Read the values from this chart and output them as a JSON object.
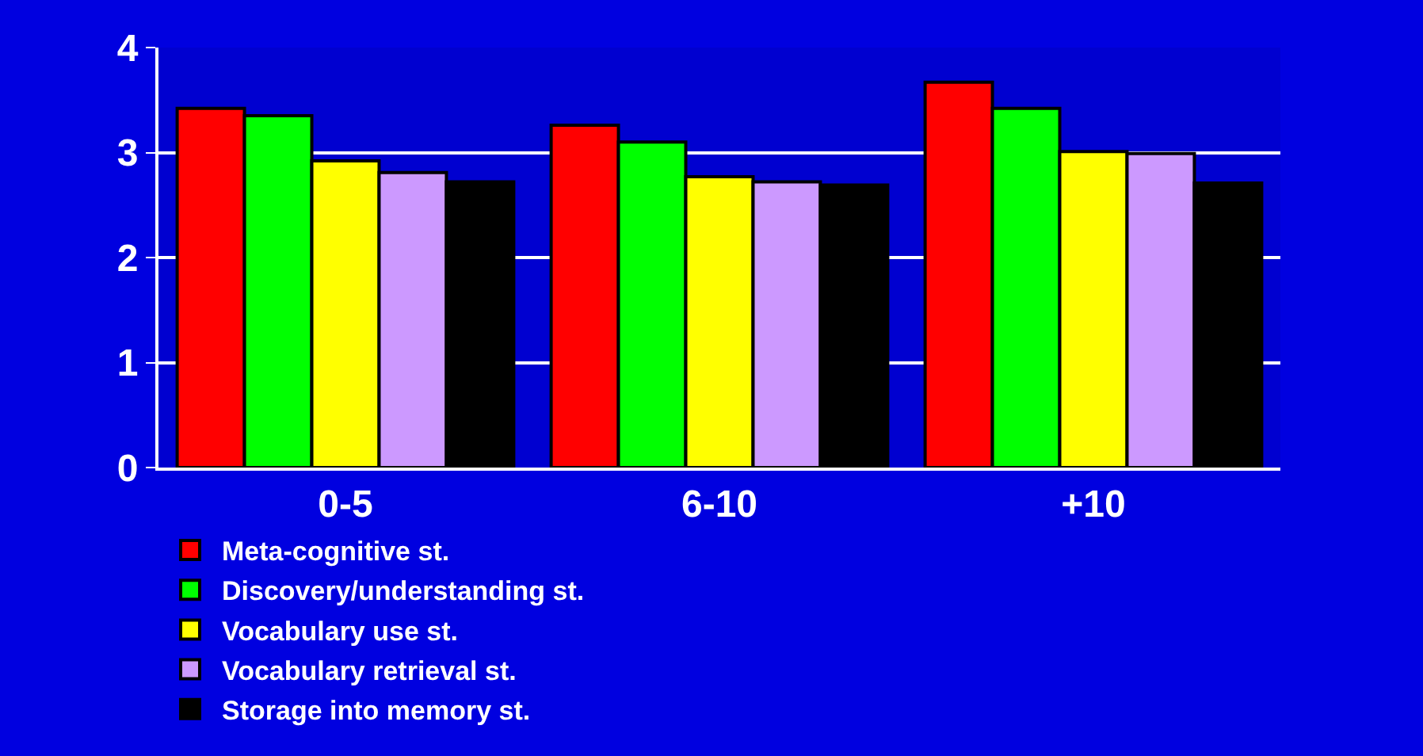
{
  "chart_data": {
    "type": "bar",
    "categories": [
      "0-5",
      "6-10",
      "+10"
    ],
    "series": [
      {
        "name": "Meta-cognitive st.",
        "color": "#ff0000",
        "values": [
          3.42,
          3.26,
          3.67
        ]
      },
      {
        "name": "Discovery/understanding st.",
        "color": "#00ff00",
        "values": [
          3.35,
          3.1,
          3.42
        ]
      },
      {
        "name": "Vocabulary use st.",
        "color": "#ffff00",
        "values": [
          2.92,
          2.77,
          3.01
        ]
      },
      {
        "name": "Vocabulary retrieval st.",
        "color": "#cc99ff",
        "values": [
          2.81,
          2.72,
          2.99
        ]
      },
      {
        "name": "Storage into memory st.",
        "color": "#000000",
        "values": [
          2.72,
          2.69,
          2.71
        ]
      }
    ],
    "ylim": [
      0,
      4
    ],
    "yticks": [
      0,
      1,
      2,
      3,
      4
    ],
    "grid": "y",
    "legend": "bottom"
  }
}
